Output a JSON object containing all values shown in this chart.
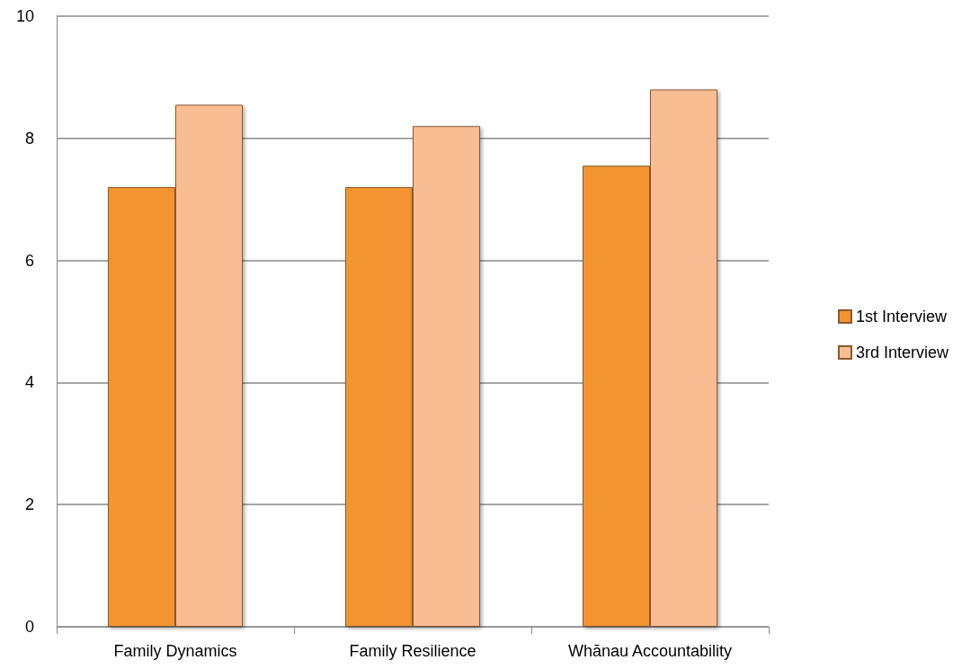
{
  "chart_data": {
    "type": "bar",
    "categories": [
      "Family Dynamics",
      "Family Resilience",
      "Whānau Accountability"
    ],
    "series": [
      {
        "name": "1st Interview",
        "color": "#f29433",
        "values": [
          7.2,
          7.2,
          7.55
        ]
      },
      {
        "name": "3rd Interview",
        "color": "#f9bd93",
        "values": [
          8.55,
          8.2,
          8.8
        ]
      }
    ],
    "ylim": [
      0,
      10
    ],
    "yticks": [
      0,
      2,
      4,
      6,
      8,
      10
    ],
    "grid": "y",
    "legend": "right"
  }
}
